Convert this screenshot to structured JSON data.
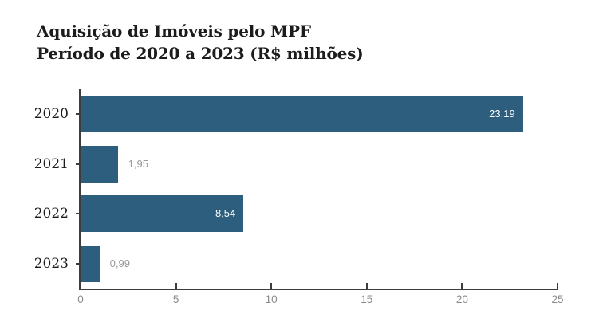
{
  "title": {
    "line1": "Aquisição de Imóveis pelo MPF",
    "line2": "Período de 2020 a 2023 (R$ milhões)"
  },
  "chart_data": {
    "type": "bar",
    "orientation": "horizontal",
    "title": "Aquisição de Imóveis pelo MPF",
    "subtitle": "Período de 2020 a 2023 (R$ milhões)",
    "categories": [
      "2020",
      "2021",
      "2022",
      "2023"
    ],
    "values": [
      23.19,
      1.95,
      8.54,
      0.99
    ],
    "value_labels": [
      "23,19",
      "1,95",
      "8,54",
      "0,99"
    ],
    "xlabel": "",
    "ylabel": "",
    "xlim": [
      0,
      25
    ],
    "x_ticks": [
      0,
      5,
      10,
      15,
      20,
      25
    ],
    "x_tick_labels": [
      "0",
      "5",
      "10",
      "15",
      "20",
      "25"
    ],
    "grid": false,
    "legend": null,
    "colors": {
      "bar": "#2d5e7e",
      "value_inside": "#ffffff",
      "value_outside": "#9a9a9a",
      "axis": "#3c3c3c",
      "tick_label": "#8a8a8a",
      "title": "#1c1c1c",
      "background": "#ffffff"
    }
  }
}
